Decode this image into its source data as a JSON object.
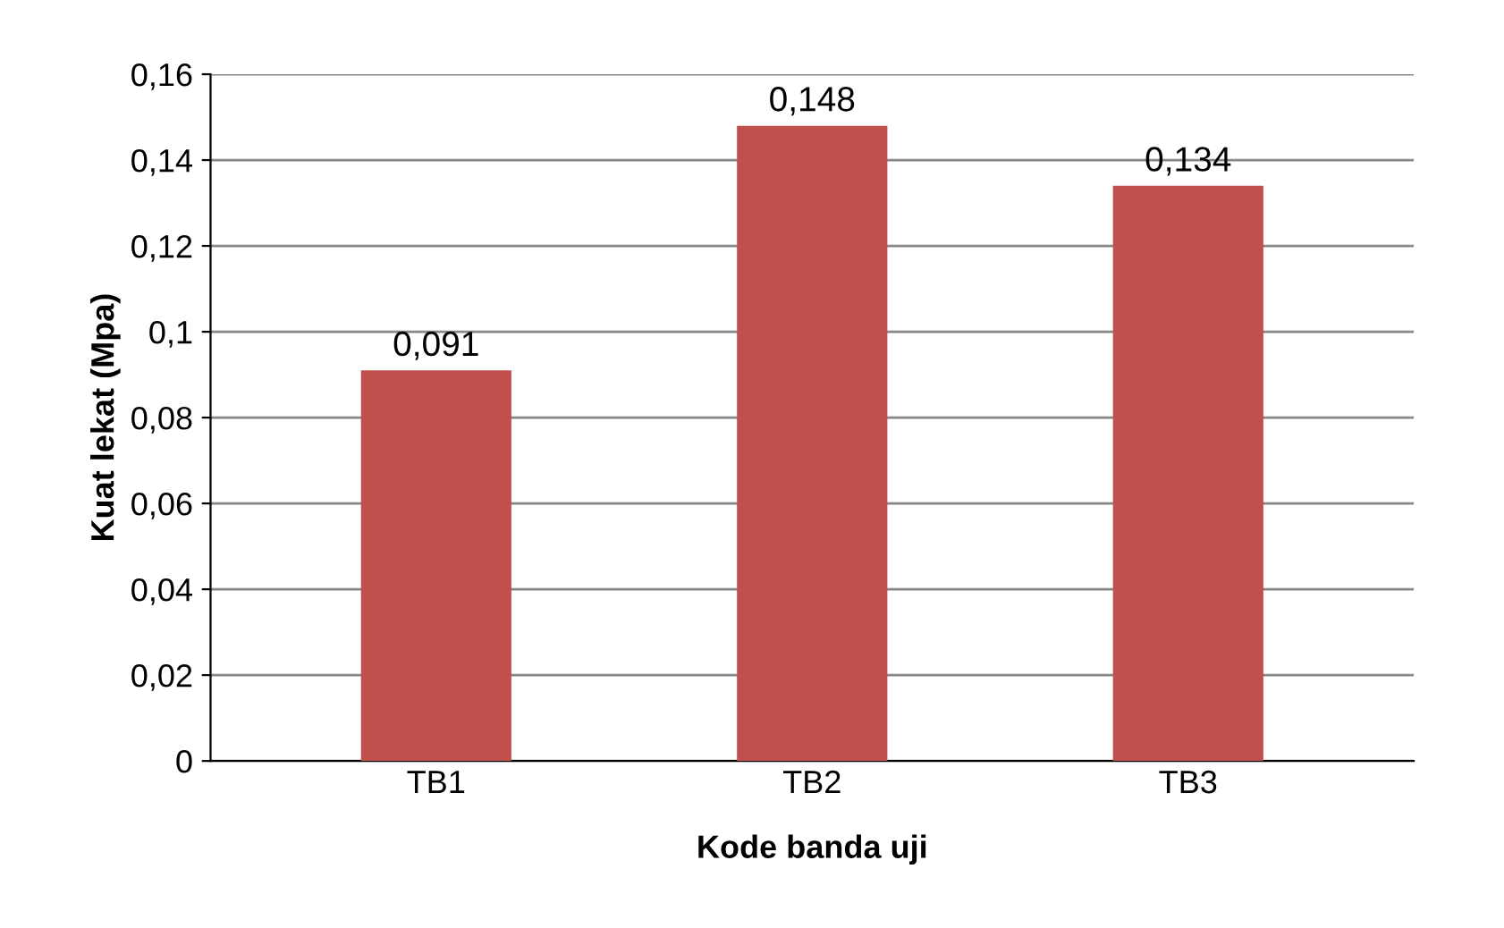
{
  "chart_data": {
    "type": "bar",
    "xlabel": "Kode banda uji",
    "ylabel": "Kuat lekat (Mpa)",
    "categories": [
      "TB1",
      "TB2",
      "TB3"
    ],
    "values": [
      0.091,
      0.148,
      0.134
    ],
    "value_labels": [
      "0,091",
      "0,148",
      "0,134"
    ],
    "color": "#c0504d",
    "ylim": [
      0,
      0.16
    ],
    "yticks": [
      0,
      {
        "value": 0.02,
        "label": "0,02"
      },
      {
        "value": 0.04,
        "label": "0,04"
      },
      {
        "value": 0.06,
        "label": "0,06"
      },
      {
        "value": 0.08,
        "label": "0,08"
      },
      {
        "value": 0.1,
        "label": "0,1"
      },
      {
        "value": 0.12,
        "label": "0,12"
      },
      {
        "value": 0.14,
        "label": "0,14"
      },
      {
        "value": 0.16,
        "label": "0,16"
      }
    ],
    "grid": "y"
  }
}
